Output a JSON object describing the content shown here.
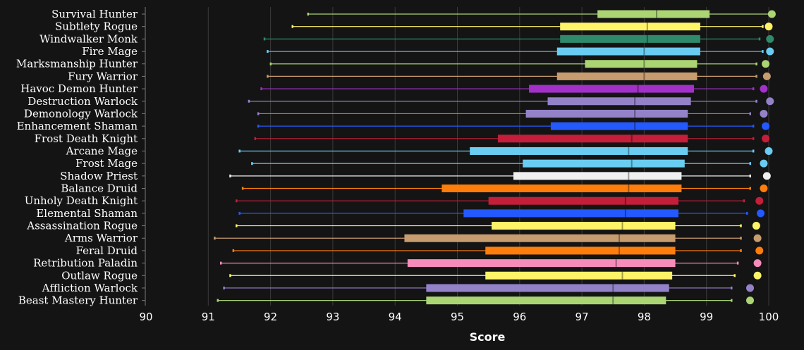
{
  "chart_data": {
    "type": "boxplot",
    "title": "",
    "xlabel": "Score",
    "ylabel": "",
    "xlim": [
      90,
      100
    ],
    "xticks": [
      "90",
      "91",
      "92",
      "93",
      "94",
      "95",
      "96",
      "97",
      "98",
      "99",
      "100"
    ],
    "grid": true,
    "categories": [
      "Survival Hunter",
      "Subtlety Rogue",
      "Windwalker Monk",
      "Fire Mage",
      "Marksmanship Hunter",
      "Fury Warrior",
      "Havoc Demon Hunter",
      "Destruction Warlock",
      "Demonology Warlock",
      "Enhancement Shaman",
      "Frost Death Knight",
      "Arcane Mage",
      "Frost Mage",
      "Shadow Priest",
      "Balance Druid",
      "Unholy Death Knight",
      "Elemental Shaman",
      "Assassination Rogue",
      "Arms Warrior",
      "Feral Druid",
      "Retribution Paladin",
      "Outlaw Rogue",
      "Affliction Warlock",
      "Beast Mastery Hunter"
    ],
    "series": [
      {
        "min": 92.6,
        "q1": 97.25,
        "median": 98.2,
        "q3": 99.05,
        "max": 100.0,
        "dot": 100.05,
        "color": "#abd473"
      },
      {
        "min": 92.35,
        "q1": 96.65,
        "median": 98.05,
        "q3": 98.9,
        "max": 99.9,
        "dot": 100.0,
        "color": "#fff468"
      },
      {
        "min": 91.9,
        "q1": 96.65,
        "median": 98.05,
        "q3": 98.9,
        "max": 99.85,
        "dot": 100.02,
        "color": "#2f8a6a"
      },
      {
        "min": 91.95,
        "q1": 96.6,
        "median": 98.0,
        "q3": 98.9,
        "max": 99.9,
        "dot": 100.02,
        "color": "#69ccf0"
      },
      {
        "min": 92.0,
        "q1": 97.05,
        "median": 98.0,
        "q3": 98.85,
        "max": 99.8,
        "dot": 99.95,
        "color": "#abd473"
      },
      {
        "min": 91.95,
        "q1": 96.6,
        "median": 98.0,
        "q3": 98.85,
        "max": 99.8,
        "dot": 99.97,
        "color": "#c79c6e"
      },
      {
        "min": 91.85,
        "q1": 96.15,
        "median": 97.9,
        "q3": 98.8,
        "max": 99.75,
        "dot": 99.92,
        "color": "#a330c9"
      },
      {
        "min": 91.65,
        "q1": 96.45,
        "median": 97.85,
        "q3": 98.75,
        "max": 99.8,
        "dot": 100.02,
        "color": "#9482c9"
      },
      {
        "min": 91.8,
        "q1": 96.1,
        "median": 97.85,
        "q3": 98.7,
        "max": 99.7,
        "dot": 99.92,
        "color": "#9482c9"
      },
      {
        "min": 91.8,
        "q1": 96.5,
        "median": 97.85,
        "q3": 98.7,
        "max": 99.75,
        "dot": 99.95,
        "color": "#2459ff"
      },
      {
        "min": 91.75,
        "q1": 95.65,
        "median": 97.8,
        "q3": 98.7,
        "max": 99.75,
        "dot": 99.95,
        "color": "#c41e3a"
      },
      {
        "min": 91.5,
        "q1": 95.2,
        "median": 97.75,
        "q3": 98.7,
        "max": 99.75,
        "dot": 100.0,
        "color": "#69ccf0"
      },
      {
        "min": 91.7,
        "q1": 96.05,
        "median": 97.8,
        "q3": 98.65,
        "max": 99.7,
        "dot": 99.92,
        "color": "#69ccf0"
      },
      {
        "min": 91.35,
        "q1": 95.9,
        "median": 97.75,
        "q3": 98.6,
        "max": 99.7,
        "dot": 99.97,
        "color": "#f0f0f0"
      },
      {
        "min": 91.55,
        "q1": 94.75,
        "median": 97.75,
        "q3": 98.6,
        "max": 99.7,
        "dot": 99.92,
        "color": "#ff7d0a"
      },
      {
        "min": 91.45,
        "q1": 95.5,
        "median": 97.7,
        "q3": 98.55,
        "max": 99.6,
        "dot": 99.85,
        "color": "#c41e3a"
      },
      {
        "min": 91.5,
        "q1": 95.1,
        "median": 97.7,
        "q3": 98.55,
        "max": 99.65,
        "dot": 99.87,
        "color": "#2459ff"
      },
      {
        "min": 91.45,
        "q1": 95.55,
        "median": 97.65,
        "q3": 98.5,
        "max": 99.55,
        "dot": 99.8,
        "color": "#fff468"
      },
      {
        "min": 91.1,
        "q1": 94.15,
        "median": 97.6,
        "q3": 98.5,
        "max": 99.55,
        "dot": 99.82,
        "color": "#c79c6e"
      },
      {
        "min": 91.4,
        "q1": 95.45,
        "median": 97.6,
        "q3": 98.5,
        "max": 99.55,
        "dot": 99.85,
        "color": "#ff7d0a"
      },
      {
        "min": 91.2,
        "q1": 94.2,
        "median": 97.55,
        "q3": 98.5,
        "max": 99.5,
        "dot": 99.82,
        "color": "#f58cba"
      },
      {
        "min": 91.35,
        "q1": 95.45,
        "median": 97.65,
        "q3": 98.45,
        "max": 99.45,
        "dot": 99.82,
        "color": "#fff468"
      },
      {
        "min": 91.25,
        "q1": 94.5,
        "median": 97.5,
        "q3": 98.4,
        "max": 99.4,
        "dot": 99.7,
        "color": "#9482c9"
      },
      {
        "min": 91.15,
        "q1": 94.5,
        "median": 97.5,
        "q3": 98.35,
        "max": 99.4,
        "dot": 99.7,
        "color": "#abd473"
      }
    ]
  }
}
